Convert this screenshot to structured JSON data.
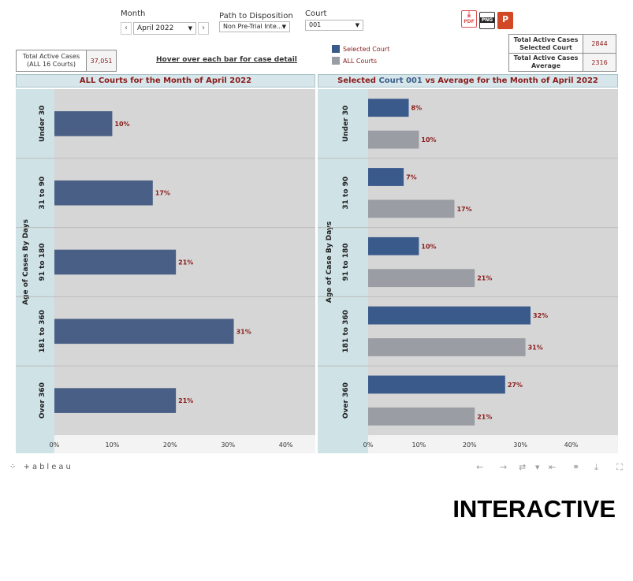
{
  "filters": {
    "month": {
      "label": "Month",
      "value": "April 2022"
    },
    "path": {
      "label": "Path to Disposition",
      "value": "Non Pre-Trial Inte..."
    },
    "court": {
      "label": "Court",
      "value": "001"
    }
  },
  "exports": [
    {
      "name": "pdf",
      "text": "PDF"
    },
    {
      "name": "png",
      "text": "PNG"
    },
    {
      "name": "ppt",
      "text": "P"
    }
  ],
  "kpi_all": {
    "label_line1": "Total Active Cases",
    "label_line2": "(ALL 16 Courts)",
    "value": "37,051"
  },
  "kpi_selected": {
    "label_line1": "Total Active Cases",
    "label_line2": "Selected Court",
    "value": "2844"
  },
  "kpi_average": {
    "label_line1": "Total Active Cases",
    "label_line2": "Average",
    "value": "2316"
  },
  "hover_hint": "Hover over each bar for case detail",
  "legend": [
    {
      "label": "Selected Court",
      "color": "#3a5a8c"
    },
    {
      "label": "ALL Courts",
      "color": "#9a9da3"
    }
  ],
  "left_panel": {
    "title": "ALL Courts for the Month of April 2022"
  },
  "right_panel": {
    "title_prefix": "Selected ",
    "title_court": "Court 001",
    "title_suffix": " vs Average  for the Month of April 2022"
  },
  "colors": {
    "selected": "#3a5a8c",
    "all_courts": "#9a9da3",
    "left_bar": "#4a5f85",
    "label": "#8b1a1a",
    "plot_bg": "#d6d6d6",
    "axis_bg": "#cfe2e6"
  },
  "chart_data": [
    {
      "type": "bar",
      "orientation": "horizontal",
      "ylabel": "Age of Cases By Days",
      "categories": [
        "Under 30",
        "31 to 90",
        "91 to 180",
        "181 to 360",
        "Over 360"
      ],
      "series": [
        {
          "values": [
            10,
            17,
            21,
            31,
            21
          ]
        }
      ],
      "value_labels": [
        "10%",
        "17%",
        "21%",
        "31%",
        "21%"
      ],
      "xlim": [
        0,
        44
      ],
      "xticks": [
        "0%",
        "10%",
        "20%",
        "30%",
        "40%"
      ]
    },
    {
      "type": "bar",
      "orientation": "horizontal",
      "ylabel": "Age of Case By Days",
      "categories": [
        "Under 30",
        "31 to 90",
        "91 to 180",
        "181 to 360",
        "Over 360"
      ],
      "series": [
        {
          "name": "Selected Court",
          "values": [
            8,
            7,
            10,
            32,
            27
          ],
          "labels": [
            "8%",
            "7%",
            "10%",
            "32%",
            "27%"
          ]
        },
        {
          "name": "ALL Courts",
          "values": [
            10,
            17,
            21,
            31,
            21
          ],
          "labels": [
            "10%",
            "17%",
            "21%",
            "31%",
            "21%"
          ]
        }
      ],
      "xlim": [
        0,
        48
      ],
      "xticks": [
        "0%",
        "10%",
        "20%",
        "30%",
        "40%"
      ]
    }
  ],
  "toolbar": {
    "brand": "+ableau"
  },
  "banner": "INTERACTIVE"
}
